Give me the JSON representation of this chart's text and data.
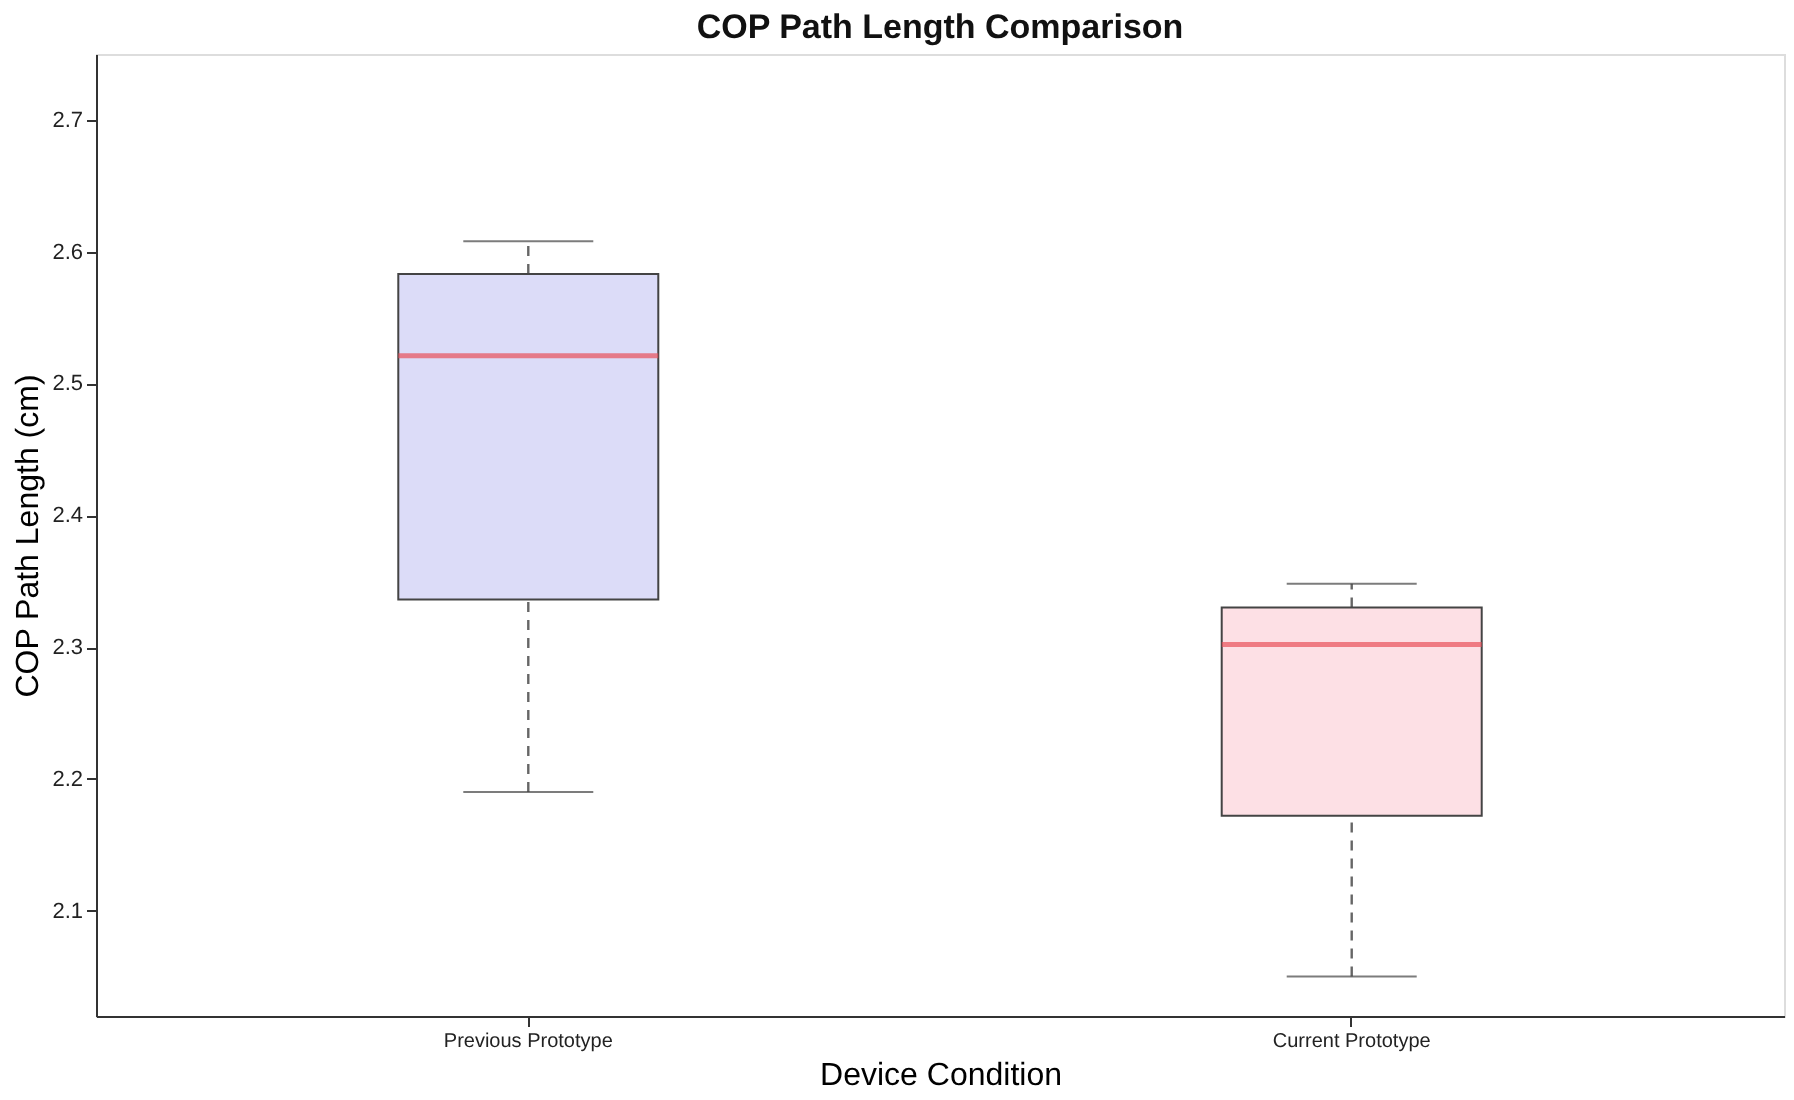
{
  "chart_data": {
    "type": "box",
    "title": "COP Path Length Comparison",
    "xlabel": "Device Condition",
    "ylabel": "COP Path Length (cm)",
    "categories": [
      "Previous Prototype",
      "Current Prototype"
    ],
    "boxes": [
      {
        "low": 2.19,
        "q1": 2.336,
        "median": 2.521,
        "q3": 2.583,
        "high": 2.608
      },
      {
        "low": 2.05,
        "q1": 2.172,
        "median": 2.302,
        "q3": 2.33,
        "high": 2.348
      }
    ],
    "colors": [
      "#dcdcf8",
      "#fde0e5"
    ],
    "ylim": [
      2.02,
      2.75
    ],
    "yticks": [
      2.1,
      2.2,
      2.3,
      2.4,
      2.5,
      2.6,
      2.7
    ],
    "grid": false
  }
}
